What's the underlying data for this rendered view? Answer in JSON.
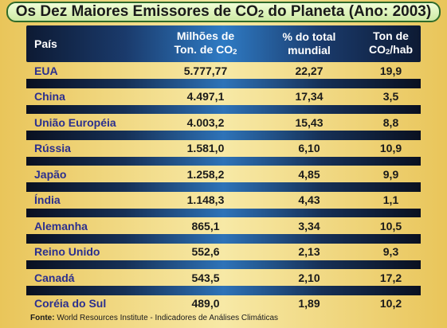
{
  "title": {
    "prefix": "Os Dez Maiores Emissores de CO",
    "subscript": "2",
    "suffix": " do Planeta (Ano: 2003)"
  },
  "headers": {
    "country": "País",
    "emissions_line1": "Milhões de",
    "emissions_line2": "Ton. de CO",
    "emissions_sub": "2",
    "share_line1": "% do total",
    "share_line2": "mundial",
    "per_capita_line1": "Ton de",
    "per_capita_line2_prefix": "CO",
    "per_capita_sub": "2",
    "per_capita_line2_suffix": "/hab"
  },
  "source": {
    "label": "Fonte:",
    "text": " World Resources Institute - Indicadores de Análises Climáticas"
  },
  "colors": {
    "country_text": "#2b2f8e",
    "header_band": "#2f7bc4",
    "title_border": "#2f6a2a"
  },
  "chart_data": {
    "type": "table",
    "columns": [
      "País",
      "Milhões de Ton. de CO2",
      "% do total mundial",
      "Ton de CO2/hab"
    ],
    "rows": [
      [
        "EUA",
        "5.777,77",
        "22,27",
        "19,9"
      ],
      [
        "China",
        "4.497,1",
        "17,34",
        "3,5"
      ],
      [
        "União Européia",
        "4.003,2",
        "15,43",
        "8,8"
      ],
      [
        "Rússia",
        "1.581,0",
        "6,10",
        "10,9"
      ],
      [
        "Japão",
        "1.258,2",
        "4,85",
        "9,9"
      ],
      [
        "Índia",
        "1.148,3",
        "4,43",
        "1,1"
      ],
      [
        "Alemanha",
        "865,1",
        "3,34",
        "10,5"
      ],
      [
        "Reino Unido",
        "552,6",
        "2,13",
        "9,3"
      ],
      [
        "Canadá",
        "543,5",
        "2,10",
        "17,2"
      ],
      [
        "Coréia do Sul",
        "489,0",
        "1,89",
        "10,2"
      ]
    ]
  }
}
